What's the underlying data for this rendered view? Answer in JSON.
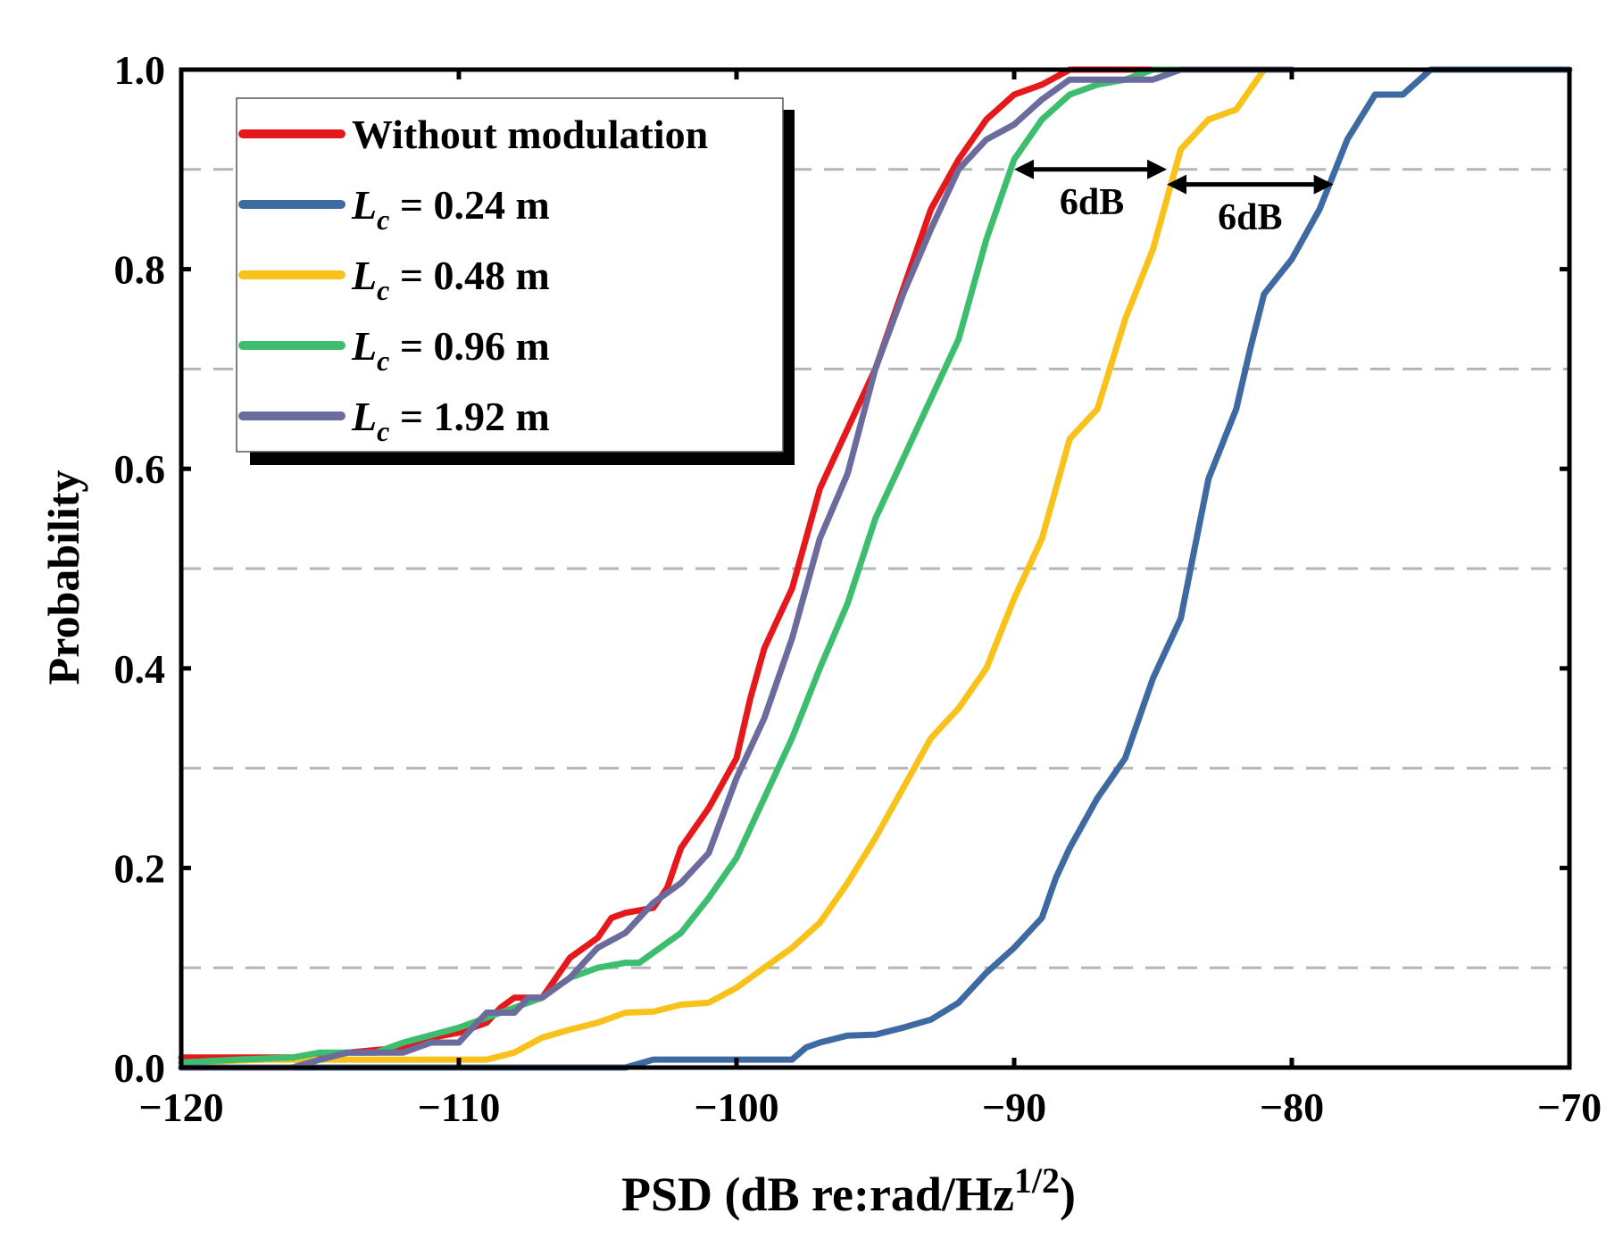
{
  "chart_data": {
    "type": "line",
    "title": "",
    "xlabel": "PSD (dB re:rad/Hz",
    "xlabel_sup": "1/2",
    "xlabel_close": ")",
    "ylabel": "Probability",
    "xlim": [
      -120,
      -70
    ],
    "ylim": [
      0,
      1
    ],
    "xticks": [
      -120,
      -110,
      -100,
      -90,
      -80,
      -70
    ],
    "xtick_labels": [
      "−120",
      "−110",
      "−100",
      "−90",
      "−80",
      "−70"
    ],
    "yticks": [
      0,
      0.2,
      0.4,
      0.6,
      0.8,
      1.0
    ],
    "ytick_labels": [
      "0.0",
      "0.2",
      "0.4",
      "0.6",
      "0.8",
      "1.0"
    ],
    "grid_y": [
      0.1,
      0.3,
      0.5,
      0.7,
      0.9
    ],
    "legend_position": "top-left",
    "series": [
      {
        "name": "Without modulation",
        "label_main": "Without modulation",
        "label_sub": "",
        "label_rest": "",
        "color": "#E5181C",
        "points": [
          [
            -120,
            0.01
          ],
          [
            -118,
            0.01
          ],
          [
            -116,
            0.01
          ],
          [
            -114,
            0.015
          ],
          [
            -112,
            0.02
          ],
          [
            -111,
            0.03
          ],
          [
            -110,
            0.035
          ],
          [
            -109,
            0.045
          ],
          [
            -108.5,
            0.06
          ],
          [
            -108,
            0.07
          ],
          [
            -107.5,
            0.07
          ],
          [
            -107,
            0.07
          ],
          [
            -106.5,
            0.09
          ],
          [
            -106,
            0.11
          ],
          [
            -105,
            0.13
          ],
          [
            -104.5,
            0.15
          ],
          [
            -104,
            0.155
          ],
          [
            -103,
            0.16
          ],
          [
            -102.5,
            0.18
          ],
          [
            -102,
            0.22
          ],
          [
            -101,
            0.26
          ],
          [
            -100,
            0.31
          ],
          [
            -99.5,
            0.37
          ],
          [
            -99,
            0.42
          ],
          [
            -98.5,
            0.45
          ],
          [
            -98,
            0.48
          ],
          [
            -97.5,
            0.53
          ],
          [
            -97,
            0.58
          ],
          [
            -96.5,
            0.61
          ],
          [
            -96,
            0.64
          ],
          [
            -95,
            0.7
          ],
          [
            -94,
            0.78
          ],
          [
            -93,
            0.86
          ],
          [
            -92,
            0.91
          ],
          [
            -91,
            0.95
          ],
          [
            -90,
            0.975
          ],
          [
            -89,
            0.985
          ],
          [
            -88,
            1.0
          ],
          [
            -85,
            1.0
          ]
        ]
      },
      {
        "name": "Lc = 0.24 m",
        "label_main": "L",
        "label_sub": "c",
        "label_rest": " = 0.24 m",
        "color": "#3E6AA2",
        "points": [
          [
            -120,
            0.0
          ],
          [
            -104,
            0.0
          ],
          [
            -103,
            0.008
          ],
          [
            -100,
            0.008
          ],
          [
            -98,
            0.008
          ],
          [
            -97.5,
            0.02
          ],
          [
            -97,
            0.025
          ],
          [
            -96,
            0.032
          ],
          [
            -95,
            0.033
          ],
          [
            -94,
            0.04
          ],
          [
            -93,
            0.048
          ],
          [
            -92,
            0.065
          ],
          [
            -91,
            0.095
          ],
          [
            -90,
            0.12
          ],
          [
            -89,
            0.15
          ],
          [
            -88.5,
            0.19
          ],
          [
            -88,
            0.22
          ],
          [
            -87,
            0.27
          ],
          [
            -86,
            0.31
          ],
          [
            -85.5,
            0.35
          ],
          [
            -85,
            0.39
          ],
          [
            -84.5,
            0.42
          ],
          [
            -84,
            0.45
          ],
          [
            -83.5,
            0.52
          ],
          [
            -83,
            0.59
          ],
          [
            -82,
            0.66
          ],
          [
            -81.5,
            0.72
          ],
          [
            -81,
            0.775
          ],
          [
            -80,
            0.81
          ],
          [
            -79,
            0.86
          ],
          [
            -78,
            0.93
          ],
          [
            -77,
            0.975
          ],
          [
            -76,
            0.975
          ],
          [
            -75,
            1.0
          ],
          [
            -70,
            1.0
          ]
        ]
      },
      {
        "name": "Lc = 0.48 m",
        "label_main": "L",
        "label_sub": "c",
        "label_rest": " = 0.48 m",
        "color": "#F9C21A",
        "points": [
          [
            -120,
            0.005
          ],
          [
            -117,
            0.008
          ],
          [
            -116,
            0.008
          ],
          [
            -110,
            0.008
          ],
          [
            -109,
            0.008
          ],
          [
            -108,
            0.015
          ],
          [
            -107,
            0.03
          ],
          [
            -106,
            0.038
          ],
          [
            -105,
            0.045
          ],
          [
            -104,
            0.055
          ],
          [
            -103,
            0.056
          ],
          [
            -102,
            0.063
          ],
          [
            -101,
            0.065
          ],
          [
            -100,
            0.08
          ],
          [
            -99,
            0.1
          ],
          [
            -98,
            0.12
          ],
          [
            -97,
            0.145
          ],
          [
            -96,
            0.185
          ],
          [
            -95,
            0.23
          ],
          [
            -94,
            0.28
          ],
          [
            -93,
            0.33
          ],
          [
            -92,
            0.36
          ],
          [
            -91,
            0.4
          ],
          [
            -90,
            0.47
          ],
          [
            -89,
            0.53
          ],
          [
            -88.5,
            0.58
          ],
          [
            -88,
            0.63
          ],
          [
            -87,
            0.66
          ],
          [
            -86,
            0.75
          ],
          [
            -85,
            0.82
          ],
          [
            -84.5,
            0.87
          ],
          [
            -84,
            0.92
          ],
          [
            -83,
            0.95
          ],
          [
            -82,
            0.96
          ],
          [
            -81,
            1.0
          ],
          [
            -80,
            1.0
          ]
        ]
      },
      {
        "name": "Lc = 0.96 m",
        "label_main": "L",
        "label_sub": "c",
        "label_rest": " = 0.96 m",
        "color": "#3DBE6E",
        "points": [
          [
            -120,
            0.005
          ],
          [
            -118,
            0.008
          ],
          [
            -116,
            0.01
          ],
          [
            -115,
            0.015
          ],
          [
            -113,
            0.015
          ],
          [
            -112,
            0.025
          ],
          [
            -110,
            0.04
          ],
          [
            -109,
            0.05
          ],
          [
            -108,
            0.06
          ],
          [
            -107,
            0.07
          ],
          [
            -106,
            0.09
          ],
          [
            -105,
            0.1
          ],
          [
            -104,
            0.105
          ],
          [
            -103.5,
            0.105
          ],
          [
            -103,
            0.115
          ],
          [
            -102,
            0.135
          ],
          [
            -101,
            0.17
          ],
          [
            -100,
            0.21
          ],
          [
            -99,
            0.27
          ],
          [
            -98,
            0.33
          ],
          [
            -97,
            0.4
          ],
          [
            -96,
            0.465
          ],
          [
            -95,
            0.55
          ],
          [
            -94,
            0.61
          ],
          [
            -93,
            0.67
          ],
          [
            -92,
            0.73
          ],
          [
            -91.5,
            0.78
          ],
          [
            -91,
            0.83
          ],
          [
            -90,
            0.91
          ],
          [
            -89,
            0.95
          ],
          [
            -88,
            0.975
          ],
          [
            -87,
            0.985
          ],
          [
            -86,
            0.99
          ],
          [
            -85,
            1.0
          ],
          [
            -80,
            1.0
          ]
        ]
      },
      {
        "name": "Lc = 1.92 m",
        "label_main": "L",
        "label_sub": "c",
        "label_rest": " = 1.92 m",
        "color": "#6B6B9E",
        "points": [
          [
            -120,
            0.0
          ],
          [
            -116,
            0.0
          ],
          [
            -115,
            0.008
          ],
          [
            -114,
            0.015
          ],
          [
            -112,
            0.015
          ],
          [
            -111,
            0.025
          ],
          [
            -110,
            0.025
          ],
          [
            -109.5,
            0.04
          ],
          [
            -109,
            0.055
          ],
          [
            -108,
            0.055
          ],
          [
            -107.5,
            0.07
          ],
          [
            -107,
            0.07
          ],
          [
            -106,
            0.09
          ],
          [
            -105,
            0.12
          ],
          [
            -104,
            0.135
          ],
          [
            -103,
            0.165
          ],
          [
            -102,
            0.185
          ],
          [
            -101,
            0.215
          ],
          [
            -100,
            0.29
          ],
          [
            -99,
            0.35
          ],
          [
            -98,
            0.43
          ],
          [
            -97,
            0.53
          ],
          [
            -96,
            0.595
          ],
          [
            -95,
            0.7
          ],
          [
            -94,
            0.775
          ],
          [
            -93,
            0.84
          ],
          [
            -92,
            0.9
          ],
          [
            -91,
            0.93
          ],
          [
            -90,
            0.945
          ],
          [
            -89,
            0.97
          ],
          [
            -88,
            0.99
          ],
          [
            -87,
            0.99
          ],
          [
            -86,
            0.99
          ],
          [
            -85,
            0.99
          ],
          [
            -84,
            1.0
          ],
          [
            -80,
            1.0
          ]
        ]
      }
    ],
    "annotations": [
      {
        "text": "6dB",
        "from": -90,
        "to": -84.5,
        "y": 0.9,
        "label_x": -87.2,
        "label_y": 0.855
      },
      {
        "text": "6dB",
        "from": -84.5,
        "to": -78.5,
        "y": 0.885,
        "label_x": -81.5,
        "label_y": 0.84
      }
    ]
  }
}
